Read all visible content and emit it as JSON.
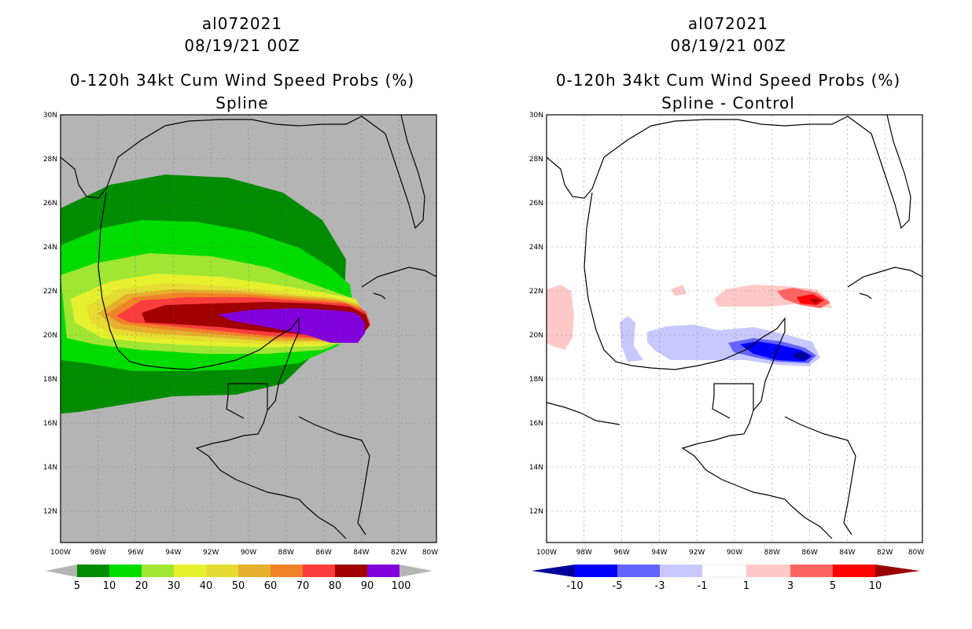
{
  "left_panel": {
    "storm_id": "al072021",
    "datetime": "08/19/21 00Z",
    "product": "0-120h 34kt Cum Wind Speed Probs (%)",
    "subtitle": "Spline",
    "colorbar": {
      "labels": [
        "5",
        "10",
        "20",
        "30",
        "40",
        "50",
        "60",
        "70",
        "80",
        "90",
        "100"
      ],
      "colors": [
        "#008c00",
        "#00dc00",
        "#a0e632",
        "#e6f02d",
        "#e6dc32",
        "#e6af2d",
        "#f08228",
        "#fa3c3c",
        "#a00000",
        "#8200dc"
      ]
    }
  },
  "right_panel": {
    "storm_id": "al072021",
    "datetime": "08/19/21 00Z",
    "product": "0-120h 34kt Cum Wind Speed Probs (%)",
    "subtitle": "Spline - Control",
    "colorbar": {
      "labels": [
        "-10",
        "-5",
        "-3",
        "-1",
        "1",
        "3",
        "5",
        "10"
      ],
      "colors": [
        "#00009a",
        "#0000ff",
        "#6464ff",
        "#c8c8ff",
        "#ffffff",
        "#ffc8c8",
        "#ff6464",
        "#ff0000",
        "#9a0000"
      ]
    }
  },
  "axes": {
    "lat_labels": [
      "30N",
      "28N",
      "26N",
      "24N",
      "22N",
      "20N",
      "18N",
      "16N",
      "14N",
      "12N"
    ],
    "lon_labels": [
      "100W",
      "98W",
      "96W",
      "94W",
      "92W",
      "90W",
      "88W",
      "86W",
      "84W",
      "82W",
      "80W"
    ]
  },
  "colors": {
    "land_bg": "#b4b4b4",
    "ocean_bg": "#ffffff",
    "coast": "#000000"
  }
}
